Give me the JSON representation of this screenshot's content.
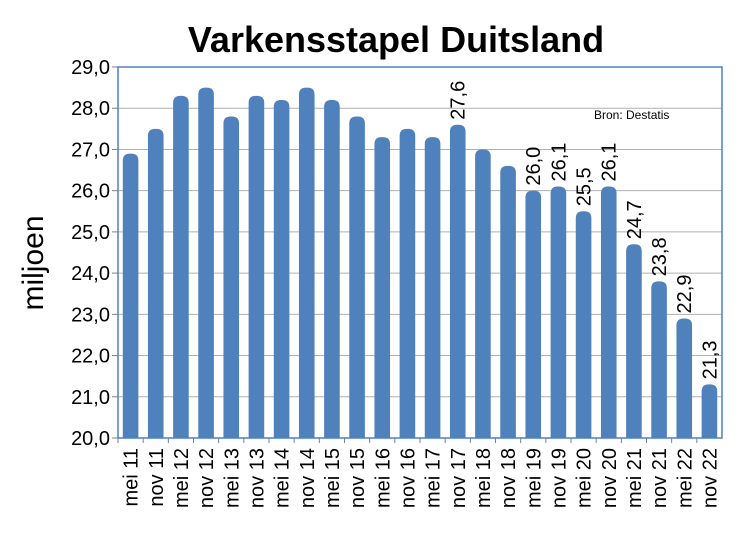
{
  "chart_data": {
    "type": "bar",
    "title": "Varkensstapel Duitsland",
    "ylabel": "miljoen",
    "xlabel": "",
    "source": "Bron: Destatis",
    "ylim": [
      20.0,
      29.0
    ],
    "yticks": [
      "20,0",
      "21,0",
      "22,0",
      "23,0",
      "24,0",
      "25,0",
      "26,0",
      "27,0",
      "28,0",
      "29,0"
    ],
    "categories": [
      "mei 11",
      "nov 11",
      "mei 12",
      "nov 12",
      "mei 13",
      "nov 13",
      "mei 14",
      "nov 14",
      "mei 15",
      "nov 15",
      "mei 16",
      "nov 16",
      "mei 17",
      "nov 17",
      "mei 18",
      "nov 18",
      "mei 19",
      "nov 19",
      "mei 20",
      "nov 20",
      "mei 21",
      "nov 21",
      "mei 22",
      "nov 22"
    ],
    "values": [
      26.9,
      27.5,
      28.3,
      28.5,
      27.8,
      28.3,
      28.2,
      28.5,
      28.2,
      27.8,
      27.3,
      27.5,
      27.3,
      27.6,
      27.0,
      26.6,
      26.0,
      26.1,
      25.5,
      26.1,
      24.7,
      23.8,
      22.9,
      21.3
    ],
    "data_labels": [
      "",
      "",
      "",
      "",
      "",
      "",
      "",
      "",
      "",
      "",
      "",
      "",
      "",
      "27,6",
      "",
      "",
      "26,0",
      "26,1",
      "25,5",
      "26,1",
      "24,7",
      "23,8",
      "22,9",
      "21,3"
    ],
    "grid": true,
    "bar_color": "#4f81bd",
    "grid_color": "#b0b0b0",
    "frame_color": "#4f81bd"
  }
}
